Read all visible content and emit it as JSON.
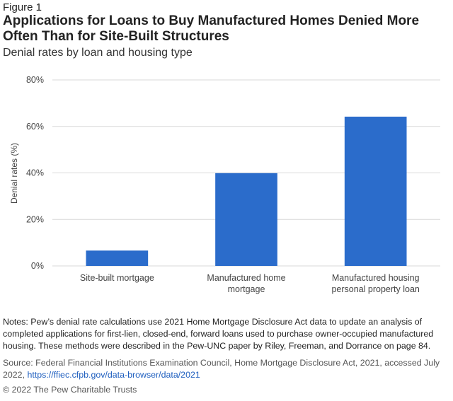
{
  "figure_label": "Figure 1",
  "title": "Applications for Loans to Buy Manufactured Homes Denied More Often Than for Site-Built Structures",
  "subtitle": "Denial rates by loan and housing type",
  "chart_data": {
    "type": "bar",
    "categories": [
      [
        "Site-built mortgage"
      ],
      [
        "Manufactured home",
        "mortgage"
      ],
      [
        "Manufactured housing",
        "personal property loan"
      ]
    ],
    "values": [
      6.6,
      39.9,
      64.2
    ],
    "ylabel": "Denial rates (%)",
    "ylim": [
      0,
      80
    ],
    "yticks": [
      0,
      20,
      40,
      60,
      80
    ],
    "ytick_labels": [
      "0%",
      "20%",
      "40%",
      "60%",
      "80%"
    ],
    "grid": true,
    "bar_color": "#2b6ccb",
    "grid_color": "#d9d9d9"
  },
  "notes": "Notes: Pew’s denial rate calculations use 2021 Home Mortgage Disclosure Act data to update an analysis of completed applications for first-lien, closed-end, forward loans used to purchase owner-occupied manufactured housing. These methods were described in the Pew-UNC paper by Riley, Freeman, and Dorrance on page 84.",
  "source_text": "Source: Federal Financial Institutions Examination Council, Home Mortgage Disclosure Act, 2021, accessed July 2022, ",
  "source_link": "https://ffiec.cfpb.gov/data-browser/data/2021",
  "copyright": "© 2022 The Pew Charitable Trusts"
}
